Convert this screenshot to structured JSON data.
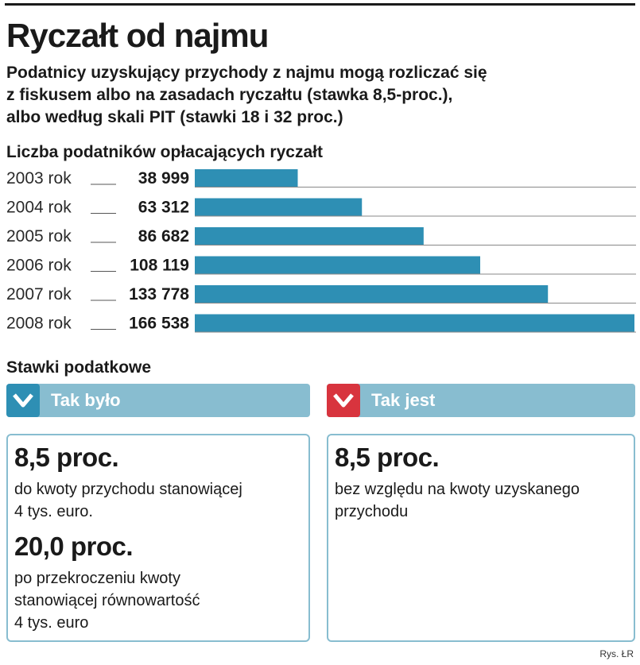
{
  "header": {
    "title": "Ryczałt od najmu",
    "subtitle": "Podatnicy uzyskujący przychody z najmu mogą rozliczać się\nz fiskusem albo na zasadach ryczałtu (stawka 8,5-proc.),\nalbo według skali PIT (stawki 18 i 32 proc.)"
  },
  "chart_data": {
    "type": "bar",
    "orientation": "horizontal",
    "title": "Liczba podatników opłacających ryczałt",
    "categories": [
      "2003 rok",
      "2004 rok",
      "2005 rok",
      "2006 rok",
      "2007 rok",
      "2008 rok"
    ],
    "values": [
      38999,
      63312,
      86682,
      108119,
      133778,
      166538
    ],
    "value_labels": [
      "38 999",
      "63 312",
      "86 682",
      "108 119",
      "133 778",
      "166 538"
    ],
    "bar_color": "#2e8fb4",
    "legend": "none",
    "grid": false
  },
  "rates": {
    "title": "Stawki podatkowe",
    "before": {
      "label": "Tak było",
      "icon": "check-icon",
      "accent": "#2e8fb4",
      "items": [
        {
          "rate": "8,5 proc.",
          "desc": "do kwoty przychodu stanowiącej\n4 tys. euro."
        },
        {
          "rate": "20,0 proc.",
          "desc": "po przekroczeniu kwoty\nstanowiącej równowartość\n4 tys. euro"
        }
      ]
    },
    "now": {
      "label": "Tak jest",
      "icon": "check-icon",
      "accent": "#d8343e",
      "items": [
        {
          "rate": "8,5 proc.",
          "desc": "bez względu na kwoty uzyskanego\nprzychodu"
        }
      ]
    }
  },
  "credit": "Rys. ŁR",
  "colors": {
    "tab_bg": "#88bdd0",
    "text": "#1a1a1a"
  }
}
